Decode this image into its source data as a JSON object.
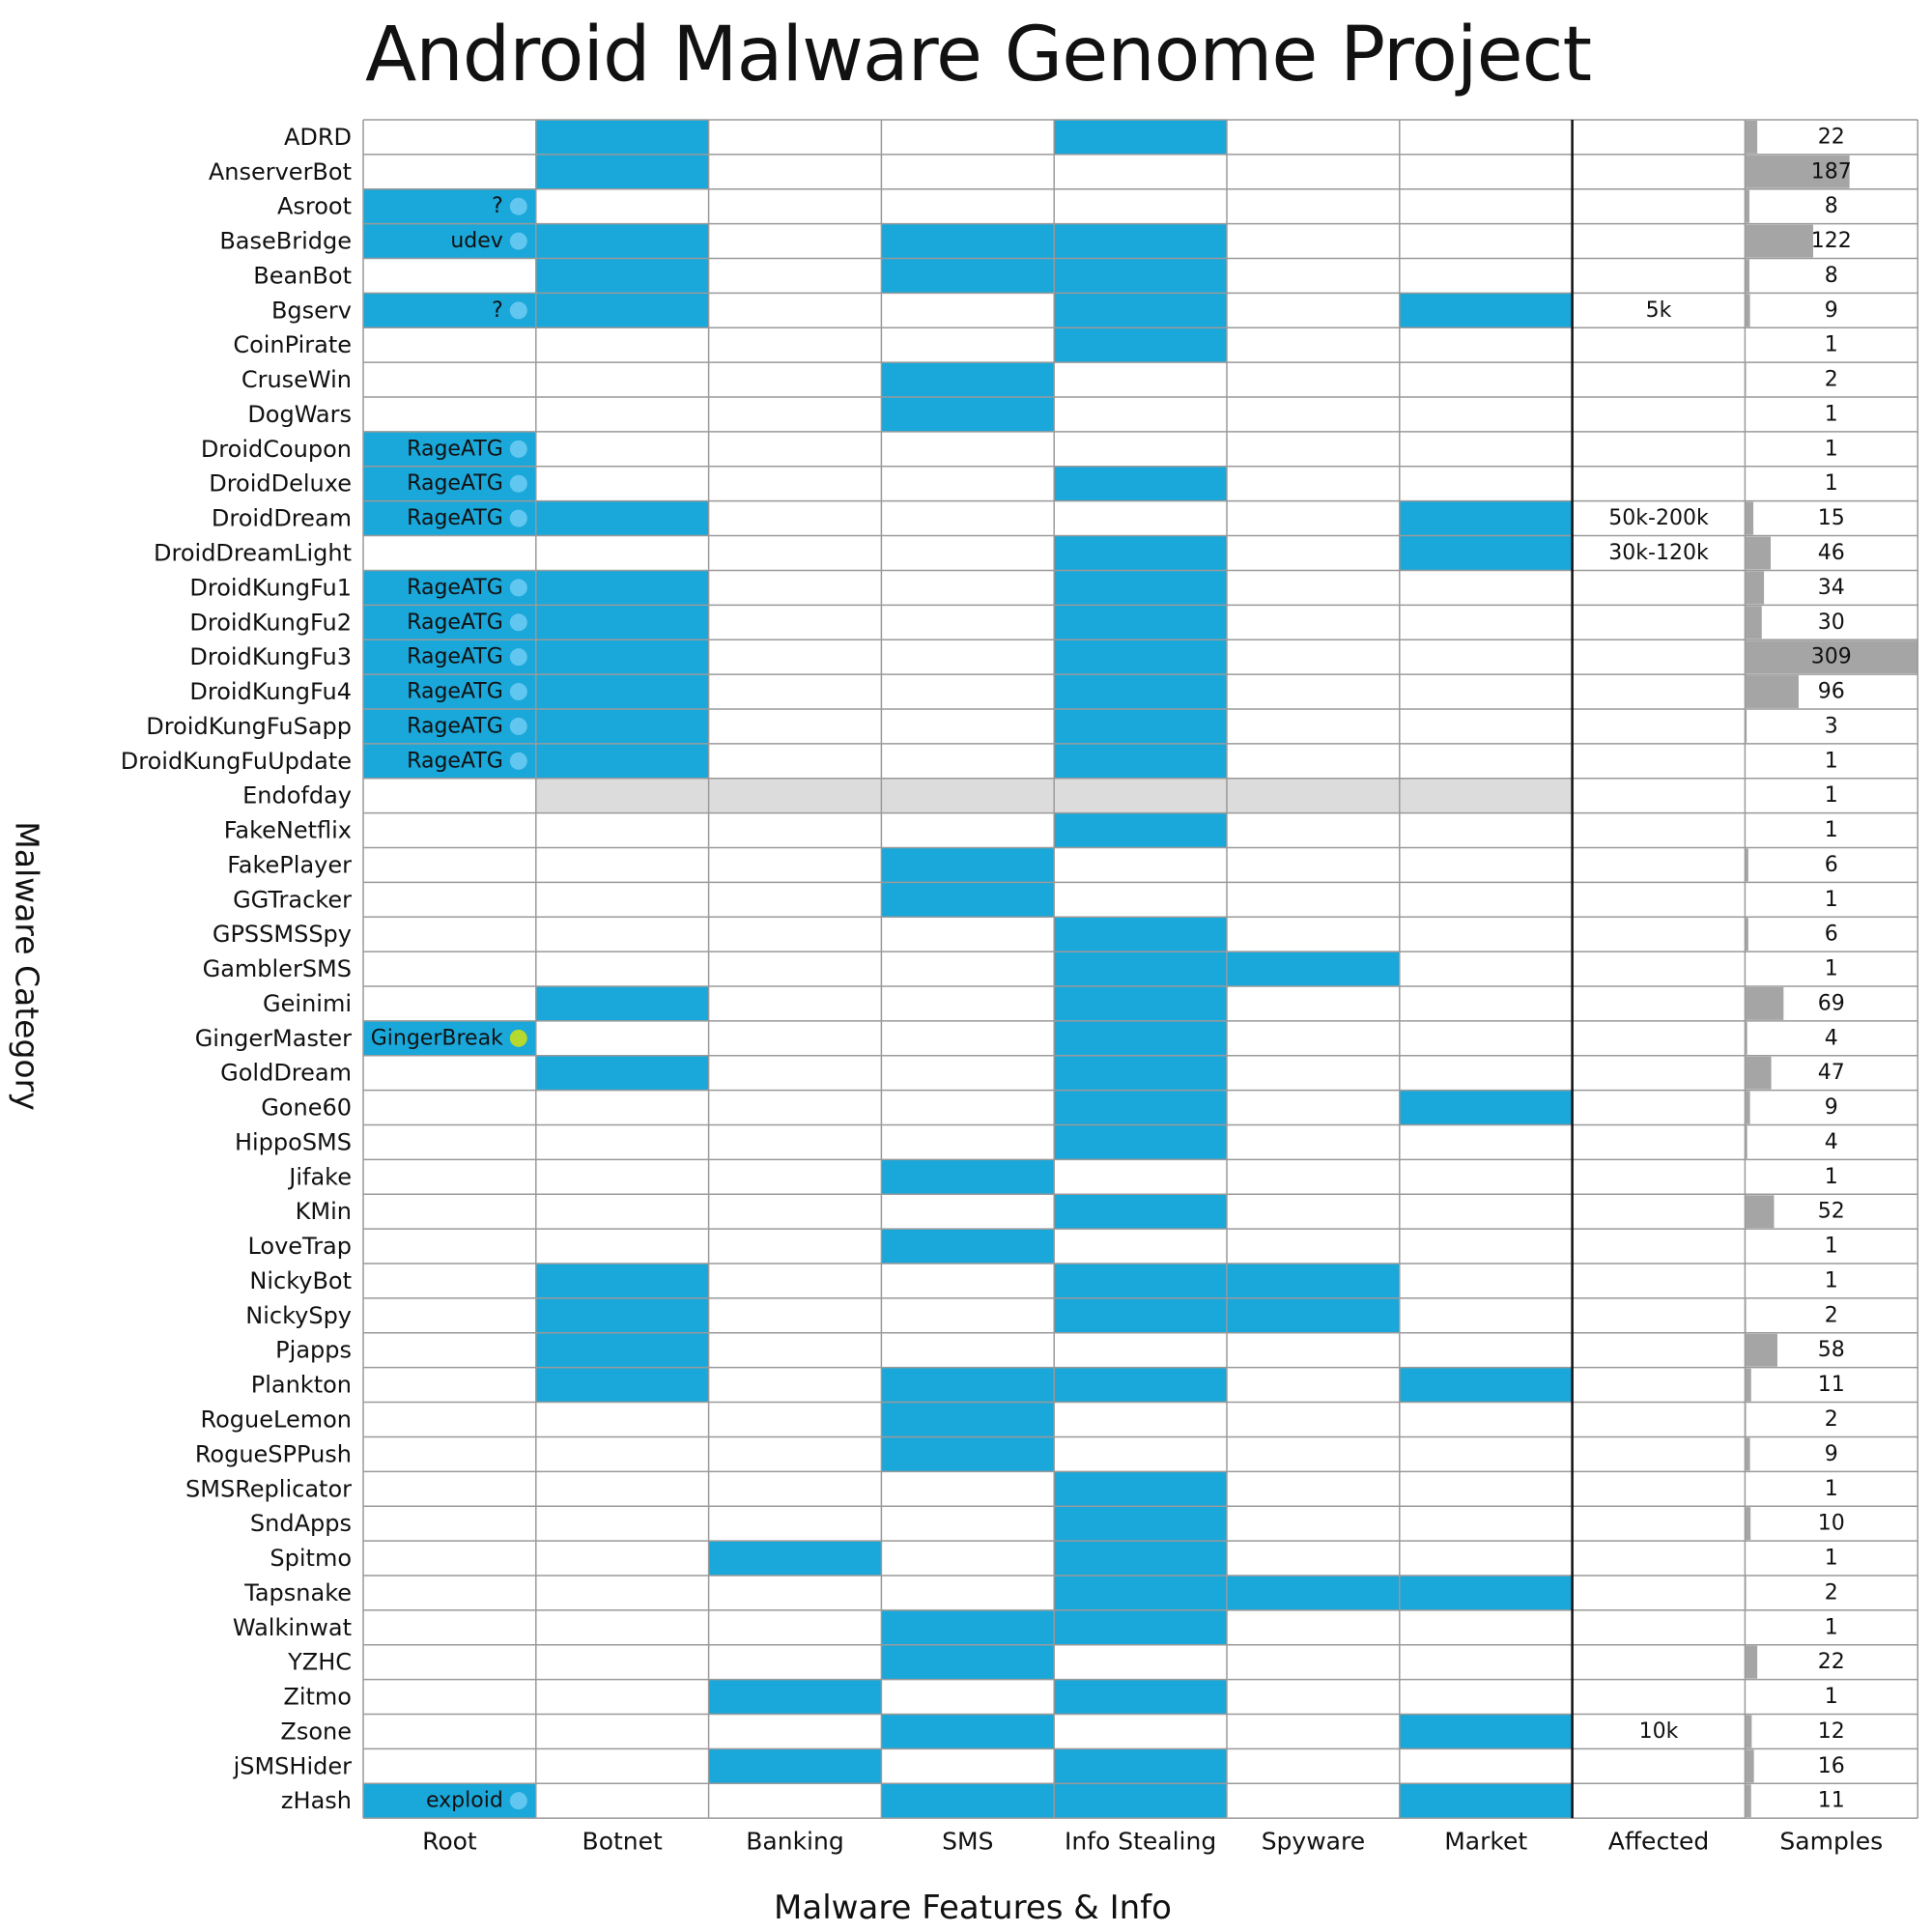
{
  "chart_data": {
    "type": "heatmap",
    "title": "Android Malware Genome Project",
    "xlabel": "Malware Features & Info",
    "ylabel": "Malware Category",
    "columns": [
      "Root",
      "Botnet",
      "Banking",
      "SMS",
      "Info Stealing",
      "Spyware",
      "Market",
      "Affected",
      "Samples"
    ],
    "colors": {
      "feature": "#1aa7d9",
      "unknown": "#dcdcdc",
      "samples_bar": "#a5a5a5",
      "dot": "#62c7f0",
      "dot_alt": "#b5d92e"
    },
    "samples_max": 309,
    "rows": [
      {
        "name": "ADRD",
        "root": "",
        "botnet": 1,
        "banking": 0,
        "sms": 0,
        "info": 1,
        "spyware": 0,
        "market": 0,
        "affected": "",
        "samples": 22
      },
      {
        "name": "AnserverBot",
        "root": "",
        "botnet": 1,
        "banking": 0,
        "sms": 0,
        "info": 0,
        "spyware": 0,
        "market": 0,
        "affected": "",
        "samples": 187
      },
      {
        "name": "Asroot",
        "root": "?",
        "botnet": 0,
        "banking": 0,
        "sms": 0,
        "info": 0,
        "spyware": 0,
        "market": 0,
        "affected": "",
        "samples": 8
      },
      {
        "name": "BaseBridge",
        "root": "udev",
        "botnet": 1,
        "banking": 0,
        "sms": 1,
        "info": 1,
        "spyware": 0,
        "market": 0,
        "affected": "",
        "samples": 122
      },
      {
        "name": "BeanBot",
        "root": "",
        "botnet": 1,
        "banking": 0,
        "sms": 1,
        "info": 1,
        "spyware": 0,
        "market": 0,
        "affected": "",
        "samples": 8
      },
      {
        "name": "Bgserv",
        "root": "?",
        "botnet": 1,
        "banking": 0,
        "sms": 0,
        "info": 1,
        "spyware": 0,
        "market": 1,
        "affected": "5k",
        "samples": 9
      },
      {
        "name": "CoinPirate",
        "root": "",
        "botnet": 0,
        "banking": 0,
        "sms": 0,
        "info": 1,
        "spyware": 0,
        "market": 0,
        "affected": "",
        "samples": 1
      },
      {
        "name": "CruseWin",
        "root": "",
        "botnet": 0,
        "banking": 0,
        "sms": 1,
        "info": 0,
        "spyware": 0,
        "market": 0,
        "affected": "",
        "samples": 2
      },
      {
        "name": "DogWars",
        "root": "",
        "botnet": 0,
        "banking": 0,
        "sms": 1,
        "info": 0,
        "spyware": 0,
        "market": 0,
        "affected": "",
        "samples": 1
      },
      {
        "name": "DroidCoupon",
        "root": "RageATG",
        "botnet": 0,
        "banking": 0,
        "sms": 0,
        "info": 0,
        "spyware": 0,
        "market": 0,
        "affected": "",
        "samples": 1
      },
      {
        "name": "DroidDeluxe",
        "root": "RageATG",
        "botnet": 0,
        "banking": 0,
        "sms": 0,
        "info": 1,
        "spyware": 0,
        "market": 0,
        "affected": "",
        "samples": 1
      },
      {
        "name": "DroidDream",
        "root": "RageATG",
        "botnet": 1,
        "banking": 0,
        "sms": 0,
        "info": 0,
        "spyware": 0,
        "market": 1,
        "affected": "50k-200k",
        "samples": 15
      },
      {
        "name": "DroidDreamLight",
        "root": "",
        "botnet": 0,
        "banking": 0,
        "sms": 0,
        "info": 1,
        "spyware": 0,
        "market": 1,
        "affected": "30k-120k",
        "samples": 46
      },
      {
        "name": "DroidKungFu1",
        "root": "RageATG",
        "botnet": 1,
        "banking": 0,
        "sms": 0,
        "info": 1,
        "spyware": 0,
        "market": 0,
        "affected": "",
        "samples": 34
      },
      {
        "name": "DroidKungFu2",
        "root": "RageATG",
        "botnet": 1,
        "banking": 0,
        "sms": 0,
        "info": 1,
        "spyware": 0,
        "market": 0,
        "affected": "",
        "samples": 30
      },
      {
        "name": "DroidKungFu3",
        "root": "RageATG",
        "botnet": 1,
        "banking": 0,
        "sms": 0,
        "info": 1,
        "spyware": 0,
        "market": 0,
        "affected": "",
        "samples": 309
      },
      {
        "name": "DroidKungFu4",
        "root": "RageATG",
        "botnet": 1,
        "banking": 0,
        "sms": 0,
        "info": 1,
        "spyware": 0,
        "market": 0,
        "affected": "",
        "samples": 96
      },
      {
        "name": "DroidKungFuSapp",
        "root": "RageATG",
        "botnet": 1,
        "banking": 0,
        "sms": 0,
        "info": 1,
        "spyware": 0,
        "market": 0,
        "affected": "",
        "samples": 3
      },
      {
        "name": "DroidKungFuUpdate",
        "root": "RageATG",
        "botnet": 1,
        "banking": 0,
        "sms": 0,
        "info": 1,
        "spyware": 0,
        "market": 0,
        "affected": "",
        "samples": 1
      },
      {
        "name": "Endofday",
        "root": "",
        "botnet": 2,
        "banking": 2,
        "sms": 2,
        "info": 2,
        "spyware": 2,
        "market": 2,
        "affected": "",
        "samples": 1
      },
      {
        "name": "FakeNetflix",
        "root": "",
        "botnet": 0,
        "banking": 0,
        "sms": 0,
        "info": 1,
        "spyware": 0,
        "market": 0,
        "affected": "",
        "samples": 1
      },
      {
        "name": "FakePlayer",
        "root": "",
        "botnet": 0,
        "banking": 0,
        "sms": 1,
        "info": 0,
        "spyware": 0,
        "market": 0,
        "affected": "",
        "samples": 6
      },
      {
        "name": "GGTracker",
        "root": "",
        "botnet": 0,
        "banking": 0,
        "sms": 1,
        "info": 0,
        "spyware": 0,
        "market": 0,
        "affected": "",
        "samples": 1
      },
      {
        "name": "GPSSMSSpy",
        "root": "",
        "botnet": 0,
        "banking": 0,
        "sms": 0,
        "info": 1,
        "spyware": 0,
        "market": 0,
        "affected": "",
        "samples": 6
      },
      {
        "name": "GamblerSMS",
        "root": "",
        "botnet": 0,
        "banking": 0,
        "sms": 0,
        "info": 1,
        "spyware": 1,
        "market": 0,
        "affected": "",
        "samples": 1
      },
      {
        "name": "Geinimi",
        "root": "",
        "botnet": 1,
        "banking": 0,
        "sms": 0,
        "info": 1,
        "spyware": 0,
        "market": 0,
        "affected": "",
        "samples": 69
      },
      {
        "name": "GingerMaster",
        "root": "GingerBreak",
        "botnet": 0,
        "banking": 0,
        "sms": 0,
        "info": 1,
        "spyware": 0,
        "market": 0,
        "affected": "",
        "samples": 4
      },
      {
        "name": "GoldDream",
        "root": "",
        "botnet": 1,
        "banking": 0,
        "sms": 0,
        "info": 1,
        "spyware": 0,
        "market": 0,
        "affected": "",
        "samples": 47
      },
      {
        "name": "Gone60",
        "root": "",
        "botnet": 0,
        "banking": 0,
        "sms": 0,
        "info": 1,
        "spyware": 0,
        "market": 1,
        "affected": "",
        "samples": 9
      },
      {
        "name": "HippoSMS",
        "root": "",
        "botnet": 0,
        "banking": 0,
        "sms": 0,
        "info": 1,
        "spyware": 0,
        "market": 0,
        "affected": "",
        "samples": 4
      },
      {
        "name": "Jifake",
        "root": "",
        "botnet": 0,
        "banking": 0,
        "sms": 1,
        "info": 0,
        "spyware": 0,
        "market": 0,
        "affected": "",
        "samples": 1
      },
      {
        "name": "KMin",
        "root": "",
        "botnet": 0,
        "banking": 0,
        "sms": 0,
        "info": 1,
        "spyware": 0,
        "market": 0,
        "affected": "",
        "samples": 52
      },
      {
        "name": "LoveTrap",
        "root": "",
        "botnet": 0,
        "banking": 0,
        "sms": 1,
        "info": 0,
        "spyware": 0,
        "market": 0,
        "affected": "",
        "samples": 1
      },
      {
        "name": "NickyBot",
        "root": "",
        "botnet": 1,
        "banking": 0,
        "sms": 0,
        "info": 1,
        "spyware": 1,
        "market": 0,
        "affected": "",
        "samples": 1
      },
      {
        "name": "NickySpy",
        "root": "",
        "botnet": 1,
        "banking": 0,
        "sms": 0,
        "info": 1,
        "spyware": 1,
        "market": 0,
        "affected": "",
        "samples": 2
      },
      {
        "name": "Pjapps",
        "root": "",
        "botnet": 1,
        "banking": 0,
        "sms": 0,
        "info": 0,
        "spyware": 0,
        "market": 0,
        "affected": "",
        "samples": 58
      },
      {
        "name": "Plankton",
        "root": "",
        "botnet": 1,
        "banking": 0,
        "sms": 1,
        "info": 1,
        "spyware": 0,
        "market": 1,
        "affected": "",
        "samples": 11
      },
      {
        "name": "RogueLemon",
        "root": "",
        "botnet": 0,
        "banking": 0,
        "sms": 1,
        "info": 0,
        "spyware": 0,
        "market": 0,
        "affected": "",
        "samples": 2
      },
      {
        "name": "RogueSPPush",
        "root": "",
        "botnet": 0,
        "banking": 0,
        "sms": 1,
        "info": 0,
        "spyware": 0,
        "market": 0,
        "affected": "",
        "samples": 9
      },
      {
        "name": "SMSReplicator",
        "root": "",
        "botnet": 0,
        "banking": 0,
        "sms": 0,
        "info": 1,
        "spyware": 0,
        "market": 0,
        "affected": "",
        "samples": 1
      },
      {
        "name": "SndApps",
        "root": "",
        "botnet": 0,
        "banking": 0,
        "sms": 0,
        "info": 1,
        "spyware": 0,
        "market": 0,
        "affected": "",
        "samples": 10
      },
      {
        "name": "Spitmo",
        "root": "",
        "botnet": 0,
        "banking": 1,
        "sms": 0,
        "info": 1,
        "spyware": 0,
        "market": 0,
        "affected": "",
        "samples": 1
      },
      {
        "name": "Tapsnake",
        "root": "",
        "botnet": 0,
        "banking": 0,
        "sms": 0,
        "info": 1,
        "spyware": 1,
        "market": 1,
        "affected": "",
        "samples": 2
      },
      {
        "name": "Walkinwat",
        "root": "",
        "botnet": 0,
        "banking": 0,
        "sms": 1,
        "info": 1,
        "spyware": 0,
        "market": 0,
        "affected": "",
        "samples": 1
      },
      {
        "name": "YZHC",
        "root": "",
        "botnet": 0,
        "banking": 0,
        "sms": 1,
        "info": 0,
        "spyware": 0,
        "market": 0,
        "affected": "",
        "samples": 22
      },
      {
        "name": "Zitmo",
        "root": "",
        "botnet": 0,
        "banking": 1,
        "sms": 0,
        "info": 1,
        "spyware": 0,
        "market": 0,
        "affected": "",
        "samples": 1
      },
      {
        "name": "Zsone",
        "root": "",
        "botnet": 0,
        "banking": 0,
        "sms": 1,
        "info": 0,
        "spyware": 0,
        "market": 1,
        "affected": "10k",
        "samples": 12
      },
      {
        "name": "jSMSHider",
        "root": "",
        "botnet": 0,
        "banking": 1,
        "sms": 0,
        "info": 1,
        "spyware": 0,
        "market": 0,
        "affected": "",
        "samples": 16
      },
      {
        "name": "zHash",
        "root": "exploid",
        "botnet": 0,
        "banking": 0,
        "sms": 1,
        "info": 1,
        "spyware": 0,
        "market": 1,
        "affected": "",
        "samples": 11
      }
    ]
  }
}
